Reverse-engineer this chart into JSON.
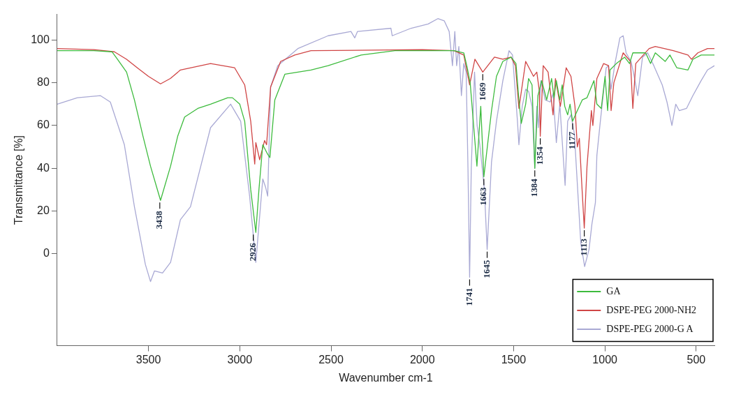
{
  "chart_data": {
    "type": "line",
    "xlabel": "Wavenumber cm-1",
    "ylabel": "Transmittance [%]",
    "xlim": [
      4000,
      400
    ],
    "xticks": [
      3500,
      3000,
      2500,
      2000,
      1500,
      1000,
      500
    ],
    "ylim": [
      -43,
      112
    ],
    "yticks": [
      0,
      20,
      40,
      60,
      80,
      100
    ],
    "grid": false,
    "legend": "bottom right",
    "marker": "none",
    "series": [
      {
        "name": "GA",
        "color": "#3dbb3d",
        "x": [
          4000,
          3800,
          3700,
          3670,
          3620,
          3577,
          3530,
          3489,
          3434,
          3379,
          3340,
          3302,
          3230,
          3160,
          3066,
          3040,
          3000,
          2973,
          2940,
          2912,
          2895,
          2874,
          2850,
          2835,
          2808,
          2753,
          2610,
          2516,
          2335,
          2150,
          2000,
          1826,
          1773,
          1754,
          1738,
          1701,
          1680,
          1663,
          1621,
          1594,
          1559,
          1514,
          1487,
          1471,
          1458,
          1434,
          1418,
          1399,
          1384,
          1367,
          1346,
          1319,
          1292,
          1279,
          1266,
          1247,
          1234,
          1220,
          1204,
          1191,
          1177,
          1151,
          1124,
          1098,
          1060,
          1044,
          1020,
          999,
          985,
          972,
          937,
          892,
          865,
          847,
          777,
          750,
          724,
          670,
          644,
          606,
          545,
          518,
          473,
          438,
          400
        ],
        "values": [
          95,
          95,
          94.5,
          91,
          85,
          72,
          55,
          41,
          25,
          41,
          55,
          64,
          68,
          70,
          73,
          73,
          70,
          62,
          30,
          10,
          30,
          51,
          47,
          45,
          72,
          84,
          86,
          88,
          93,
          95,
          95,
          95,
          94,
          87,
          80,
          41,
          69,
          36,
          67,
          83,
          90,
          92,
          89,
          72,
          61,
          70,
          82,
          79,
          40,
          74,
          81,
          72,
          82,
          73,
          81,
          72,
          79,
          69,
          65,
          70,
          62,
          67,
          72,
          73,
          81,
          70,
          68,
          83,
          67,
          86,
          89,
          92,
          89,
          94,
          94,
          89,
          94,
          90,
          93,
          87,
          86,
          91,
          93,
          93,
          93
        ]
      },
      {
        "name": "DSPE-PEG 2000-NH2",
        "color": "#d04545",
        "x": [
          4000,
          3800,
          3687,
          3620,
          3561,
          3500,
          3434,
          3380,
          3325,
          3160,
          3028,
          2973,
          2940,
          2918,
          2912,
          2891,
          2864,
          2853,
          2831,
          2776,
          2699,
          2610,
          2000,
          1826,
          1773,
          1741,
          1712,
          1669,
          1605,
          1559,
          1514,
          1490,
          1471,
          1434,
          1391,
          1373,
          1359,
          1354,
          1338,
          1311,
          1284,
          1271,
          1244,
          1212,
          1186,
          1164,
          1151,
          1140,
          1125,
          1113,
          1098,
          1074,
          1066,
          1044,
          1007,
          980,
          966,
          951,
          900,
          860,
          847,
          831,
          758,
          724,
          625,
          545,
          526,
          491,
          438,
          400
        ],
        "values": [
          96,
          95.5,
          94.5,
          91,
          87,
          83,
          79.5,
          82,
          86,
          89,
          87,
          79,
          62,
          42,
          52,
          44,
          53,
          51,
          78,
          90,
          93,
          95,
          95.5,
          95,
          93,
          79,
          91,
          85,
          92,
          91,
          92,
          88,
          68,
          90,
          83,
          85,
          76,
          55,
          88,
          85,
          65,
          82,
          69,
          87,
          83,
          69,
          50,
          54,
          30,
          12,
          41,
          67,
          60,
          82,
          89,
          88,
          67,
          80,
          94,
          90,
          68,
          89,
          96,
          97,
          95,
          93,
          91,
          94,
          96,
          96
        ]
      },
      {
        "name": "DSPE-PEG 2000-G A",
        "color": "#a9a9d4",
        "x": [
          4000,
          3890,
          3764,
          3709,
          3632,
          3577,
          3517,
          3489,
          3467,
          3423,
          3379,
          3325,
          3270,
          3160,
          3050,
          2995,
          2946,
          2912,
          2874,
          2858,
          2847,
          2831,
          2792,
          2682,
          2516,
          2391,
          2370,
          2355,
          2172,
          2165,
          2062,
          1968,
          1915,
          1880,
          1853,
          1835,
          1822,
          1812,
          1800,
          1786,
          1773,
          1760,
          1750,
          1741,
          1732,
          1714,
          1700,
          1685,
          1660,
          1645,
          1621,
          1594,
          1559,
          1525,
          1506,
          1479,
          1471,
          1453,
          1434,
          1418,
          1399,
          1384,
          1373,
          1365,
          1351,
          1327,
          1300,
          1284,
          1266,
          1247,
          1218,
          1204,
          1186,
          1167,
          1132,
          1111,
          1087,
          1071,
          1052,
          1044,
          1025,
          993,
          980,
          966,
          945,
          918,
          900,
          884,
          857,
          844,
          820,
          794,
          766,
          732,
          686,
          660,
          633,
          612,
          593,
          553,
          518,
          473,
          438,
          400
        ],
        "values": [
          70,
          73,
          74,
          71,
          51,
          22,
          -5,
          -13,
          -8,
          -9,
          -4,
          16,
          22,
          59,
          70,
          62,
          27,
          -4,
          35,
          31,
          27,
          78,
          88,
          96,
          102,
          104,
          101,
          104,
          105.5,
          102,
          105.5,
          107.5,
          110,
          109,
          104,
          88,
          104,
          88,
          97,
          74,
          89,
          85,
          40,
          -11,
          40,
          85,
          60,
          51,
          30,
          2,
          43,
          62,
          81,
          95,
          93,
          62,
          51,
          69,
          77,
          76,
          69,
          40,
          69,
          59,
          81,
          72,
          71,
          75,
          52,
          70,
          32,
          62,
          65,
          56,
          5,
          -6,
          2,
          14,
          24,
          46,
          62,
          87,
          88,
          77,
          89,
          101,
          102,
          94,
          90,
          85,
          74,
          92,
          94,
          88,
          79,
          71,
          60,
          70,
          67,
          68,
          74,
          81,
          86,
          88
        ]
      }
    ],
    "annotations": [
      {
        "text": "3438",
        "x": 3438,
        "y": 25
      },
      {
        "text": "2926",
        "x": 2926,
        "y": 10
      },
      {
        "text": "1741",
        "x": 1741,
        "y": -11
      },
      {
        "text": "1669",
        "x": 1669,
        "y": 85
      },
      {
        "text": "1663",
        "x": 1663,
        "y": 36
      },
      {
        "text": "1645",
        "x": 1645,
        "y": 2
      },
      {
        "text": "1384",
        "x": 1384,
        "y": 40
      },
      {
        "text": "1354",
        "x": 1354,
        "y": 55
      },
      {
        "text": "1177",
        "x": 1177,
        "y": 62
      },
      {
        "text": "1113",
        "x": 1113,
        "y": 12
      }
    ]
  }
}
